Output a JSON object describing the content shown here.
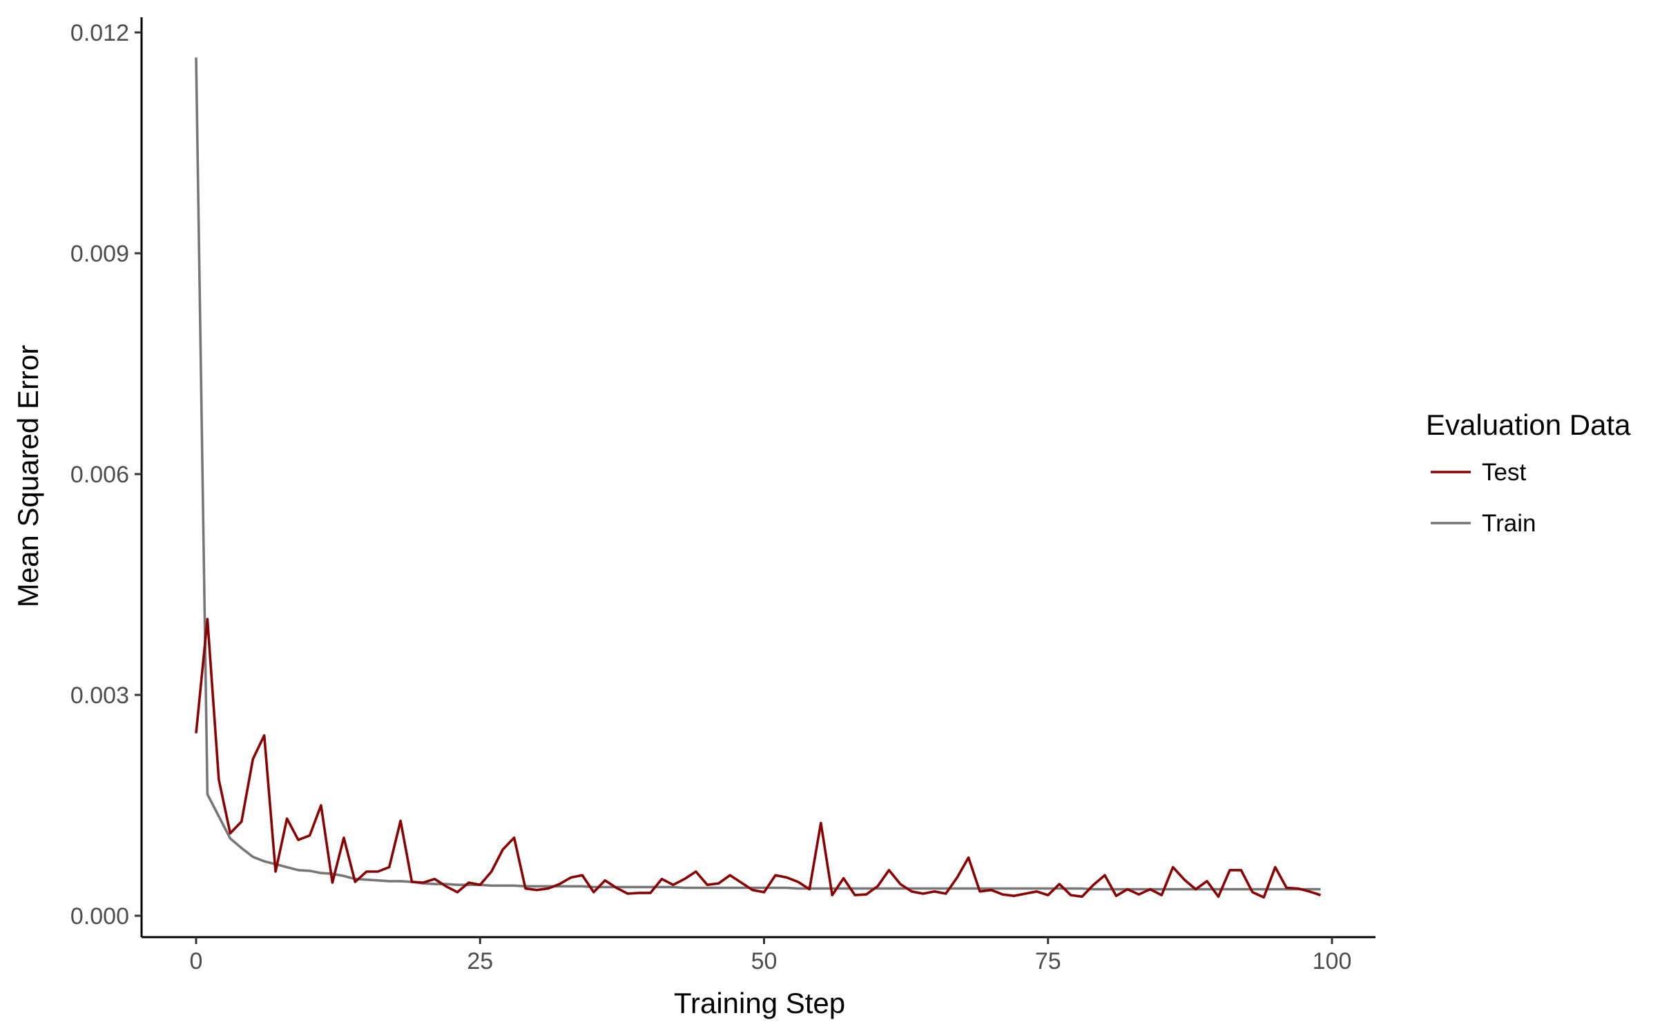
{
  "chart_data": {
    "type": "line",
    "xlabel": "Training Step",
    "ylabel": "Mean Squared Error",
    "xlim": [
      0,
      100
    ],
    "ylim": [
      0,
      0.012
    ],
    "x_ticks": [
      0,
      25,
      50,
      75,
      100
    ],
    "x_tick_labels": [
      "0",
      "25",
      "50",
      "75",
      "100"
    ],
    "y_ticks": [
      0,
      0.003,
      0.006,
      0.009,
      0.012
    ],
    "y_tick_labels": [
      "0.000",
      "0.003",
      "0.006",
      "0.009",
      "0.012"
    ],
    "grid": false,
    "legend": {
      "title": "Evaluation Data",
      "position": "right",
      "entries": [
        {
          "label": "Test",
          "color": "#8b0000"
        },
        {
          "label": "Train",
          "color": "#777777"
        }
      ]
    },
    "series": [
      {
        "name": "Test",
        "color": "#8b0000",
        "x": [
          0,
          1,
          2,
          3,
          4,
          5,
          6,
          7,
          8,
          9,
          10,
          11,
          12,
          13,
          14,
          15,
          16,
          17,
          18,
          19,
          20,
          21,
          22,
          23,
          24,
          25,
          26,
          27,
          28,
          29,
          30,
          31,
          32,
          33,
          34,
          35,
          36,
          37,
          38,
          39,
          40,
          41,
          42,
          43,
          44,
          45,
          46,
          47,
          48,
          49,
          50,
          51,
          52,
          53,
          54,
          55,
          56,
          57,
          58,
          59,
          60,
          61,
          62,
          63,
          64,
          65,
          66,
          67,
          68,
          69,
          70,
          71,
          72,
          73,
          74,
          75,
          76,
          77,
          78,
          79,
          80,
          81,
          82,
          83,
          84,
          85,
          86,
          87,
          88,
          89,
          90,
          91,
          92,
          93,
          94,
          95,
          96,
          97,
          98,
          99
        ],
        "values": [
          0.00248,
          0.00403,
          0.00185,
          0.00112,
          0.00128,
          0.00213,
          0.00245,
          0.0006,
          0.00132,
          0.00103,
          0.00109,
          0.0015,
          0.00045,
          0.00106,
          0.00046,
          0.0006,
          0.0006,
          0.00066,
          0.00129,
          0.00046,
          0.00045,
          0.0005,
          0.0004,
          0.00032,
          0.00045,
          0.00042,
          0.0006,
          0.0009,
          0.00106,
          0.00037,
          0.00035,
          0.00037,
          0.00043,
          0.00052,
          0.00055,
          0.00032,
          0.00048,
          0.00038,
          0.0003,
          0.00031,
          0.00031,
          0.0005,
          0.00042,
          0.0005,
          0.0006,
          0.00042,
          0.00044,
          0.00055,
          0.00045,
          0.00035,
          0.00032,
          0.00055,
          0.00052,
          0.00046,
          0.00036,
          0.00126,
          0.00028,
          0.00051,
          0.00028,
          0.00029,
          0.0004,
          0.00062,
          0.00043,
          0.00033,
          0.0003,
          0.00033,
          0.0003,
          0.00052,
          0.00079,
          0.00033,
          0.00035,
          0.00029,
          0.00027,
          0.0003,
          0.00033,
          0.00028,
          0.00043,
          0.00028,
          0.00026,
          0.00042,
          0.00055,
          0.00027,
          0.00036,
          0.00029,
          0.00036,
          0.00028,
          0.00066,
          0.00049,
          0.00036,
          0.00047,
          0.00026,
          0.00062,
          0.00062,
          0.00032,
          0.00025,
          0.00066,
          0.00038,
          0.00037,
          0.00033,
          0.00028
        ]
      },
      {
        "name": "Train",
        "color": "#777777",
        "x": [
          0,
          1,
          2,
          3,
          4,
          5,
          6,
          7,
          8,
          9,
          10,
          11,
          12,
          13,
          14,
          15,
          16,
          17,
          18,
          19,
          20,
          21,
          22,
          23,
          24,
          25,
          26,
          27,
          28,
          29,
          30,
          31,
          32,
          33,
          34,
          35,
          36,
          37,
          38,
          39,
          40,
          41,
          42,
          43,
          44,
          45,
          46,
          47,
          48,
          49,
          50,
          51,
          52,
          53,
          54,
          55,
          56,
          57,
          58,
          59,
          60,
          61,
          62,
          63,
          64,
          65,
          66,
          67,
          68,
          69,
          70,
          71,
          72,
          73,
          74,
          75,
          76,
          77,
          78,
          79,
          80,
          81,
          82,
          83,
          84,
          85,
          86,
          87,
          88,
          89,
          90,
          91,
          92,
          93,
          94,
          95,
          96,
          97,
          98,
          99
        ],
        "values": [
          0.01166,
          0.00165,
          0.00135,
          0.00105,
          0.00092,
          0.0008,
          0.00074,
          0.0007,
          0.00066,
          0.00062,
          0.00061,
          0.00058,
          0.00057,
          0.00054,
          0.0005,
          0.00049,
          0.00048,
          0.00047,
          0.00047,
          0.00046,
          0.00044,
          0.00043,
          0.00043,
          0.00042,
          0.00042,
          0.00042,
          0.00041,
          0.00041,
          0.00041,
          0.0004,
          0.0004,
          0.0004,
          0.0004,
          0.0004,
          0.0004,
          0.00039,
          0.00039,
          0.00039,
          0.00039,
          0.00039,
          0.00039,
          0.00039,
          0.00039,
          0.00038,
          0.00038,
          0.00038,
          0.00038,
          0.00038,
          0.00038,
          0.00038,
          0.00038,
          0.00038,
          0.00038,
          0.00037,
          0.00037,
          0.00037,
          0.00037,
          0.00037,
          0.00037,
          0.00037,
          0.00037,
          0.00037,
          0.00037,
          0.00037,
          0.00037,
          0.00037,
          0.00037,
          0.00037,
          0.00037,
          0.00037,
          0.00037,
          0.00037,
          0.00037,
          0.00037,
          0.00037,
          0.00037,
          0.00037,
          0.00037,
          0.00037,
          0.00036,
          0.00036,
          0.00036,
          0.00036,
          0.00036,
          0.00036,
          0.00036,
          0.00036,
          0.00036,
          0.00036,
          0.00036,
          0.00036,
          0.00036,
          0.00036,
          0.00036,
          0.00036,
          0.00036,
          0.00036,
          0.00036,
          0.00036,
          0.00036
        ]
      }
    ]
  }
}
